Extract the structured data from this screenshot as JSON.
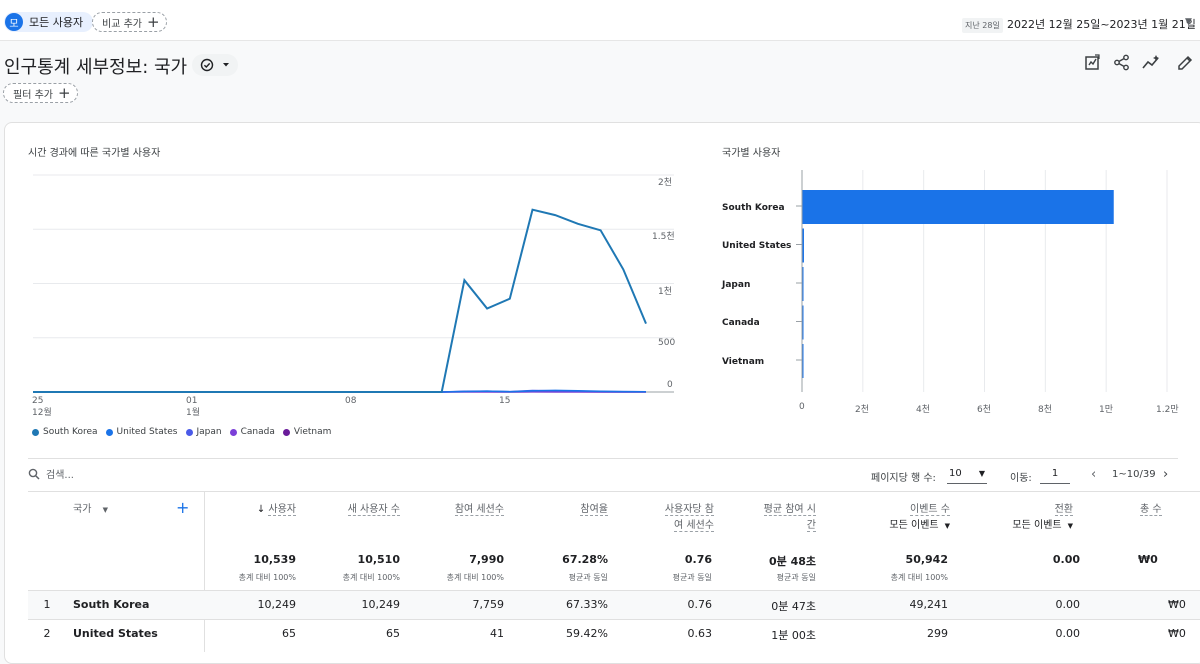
{
  "topbar": {
    "segment_avatar": "모",
    "segment_label": "모든 사용자",
    "compare_label": "비교 추가",
    "date_prefix": "지난 28일",
    "date_range": "2022년 12월 25일~2023년 1월 21일"
  },
  "page": {
    "title": "인구통계 세부정보: 국가",
    "filter_label": "필터 추가"
  },
  "colors": {
    "south_korea": "#1f78b4",
    "united_states": "#1a73e8",
    "japan": "#4a5ae8",
    "canada": "#7b3fd8",
    "vietnam": "#6a1b9a",
    "bar": "#1a73e8"
  },
  "line_chart": {
    "title": "시간 경과에 따른 국가별 사용자",
    "x_ticks": [
      {
        "day": "25",
        "month": "12월"
      },
      {
        "day": "01",
        "month": "1월"
      },
      {
        "day": "08",
        "month": ""
      },
      {
        "day": "15",
        "month": ""
      }
    ],
    "y_ticks": [
      "2천",
      "1.5천",
      "1천",
      "500",
      "0"
    ]
  },
  "bar_chart": {
    "title": "국가별 사용자",
    "x_ticks": [
      "0",
      "2천",
      "4천",
      "6천",
      "8천",
      "1만",
      "1.2만"
    ]
  },
  "chart_data": [
    {
      "type": "line",
      "title": "시간 경과에 따른 국가별 사용자",
      "x": [
        "2022-12-25",
        "2022-12-26",
        "2022-12-27",
        "2022-12-28",
        "2022-12-29",
        "2022-12-30",
        "2022-12-31",
        "2023-01-01",
        "2023-01-02",
        "2023-01-03",
        "2023-01-04",
        "2023-01-05",
        "2023-01-06",
        "2023-01-07",
        "2023-01-08",
        "2023-01-09",
        "2023-01-10",
        "2023-01-11",
        "2023-01-12",
        "2023-01-13",
        "2023-01-14",
        "2023-01-15",
        "2023-01-16",
        "2023-01-17",
        "2023-01-18",
        "2023-01-19",
        "2023-01-20",
        "2023-01-21"
      ],
      "ylim": [
        0,
        2000
      ],
      "series": [
        {
          "name": "South Korea",
          "values": [
            0,
            0,
            0,
            0,
            0,
            0,
            0,
            0,
            0,
            0,
            0,
            0,
            0,
            0,
            0,
            0,
            0,
            0,
            0,
            1030,
            770,
            860,
            1680,
            1630,
            1550,
            1490,
            1130,
            630
          ]
        },
        {
          "name": "United States",
          "values": [
            0,
            0,
            0,
            0,
            0,
            0,
            0,
            0,
            0,
            0,
            0,
            0,
            0,
            0,
            0,
            0,
            0,
            0,
            0,
            5,
            8,
            3,
            10,
            15,
            12,
            6,
            4,
            2
          ]
        },
        {
          "name": "Japan",
          "values": [
            0,
            0,
            0,
            0,
            0,
            0,
            0,
            0,
            0,
            0,
            0,
            0,
            0,
            0,
            0,
            0,
            0,
            0,
            0,
            6,
            8,
            4,
            14,
            12,
            8,
            5,
            4,
            3
          ]
        },
        {
          "name": "Canada",
          "values": [
            0,
            0,
            0,
            0,
            0,
            0,
            0,
            0,
            0,
            0,
            0,
            0,
            0,
            0,
            0,
            0,
            0,
            0,
            0,
            1,
            1,
            1,
            2,
            1,
            1,
            1,
            0,
            0
          ]
        },
        {
          "name": "Vietnam",
          "values": [
            0,
            0,
            0,
            0,
            0,
            0,
            0,
            0,
            0,
            0,
            0,
            0,
            0,
            0,
            0,
            0,
            0,
            0,
            0,
            1,
            1,
            0,
            1,
            1,
            1,
            0,
            0,
            0
          ]
        }
      ],
      "grid": true,
      "legend": "bottom-left"
    },
    {
      "type": "bar",
      "title": "국가별 사용자",
      "categories": [
        "South Korea",
        "United States",
        "Japan",
        "Canada",
        "Vietnam"
      ],
      "values": [
        10249,
        65,
        48,
        9,
        6
      ],
      "xlim": [
        0,
        12000
      ],
      "grid": true,
      "orientation": "horizontal"
    }
  ],
  "table": {
    "search_placeholder": "검색...",
    "rows_per_page_label": "페이지당 행 수:",
    "rows_per_page_value": "10",
    "goto_label": "이동:",
    "goto_value": "1",
    "range_label": "1~10/39",
    "col_country": "국가",
    "col_users": "사용자",
    "col_new_users": "새 사용자 수",
    "col_engaged": "참여 세션수",
    "col_rate": "참여율",
    "col_eps_1": "사용자당 참",
    "col_eps_2": "여 세션수",
    "col_avg_1": "평균 참여 시",
    "col_avg_2": "간",
    "col_events": "이벤트 수",
    "col_events_sub": "모든 이벤트",
    "col_conv": "전환",
    "col_conv_sub": "모든 이벤트",
    "col_total": "총 수",
    "totals": {
      "users": "10,539",
      "users_sub": "총계 대비 100%",
      "new_users": "10,510",
      "new_users_sub": "총계 대비 100%",
      "engaged": "7,990",
      "engaged_sub": "총계 대비 100%",
      "rate": "67.28%",
      "rate_sub": "평균과 동일",
      "eps": "0.76",
      "eps_sub": "평균과 동일",
      "avg": "0분 48초",
      "avg_sub": "평균과 동일",
      "events": "50,942",
      "events_sub": "총계 대비 100%",
      "conv": "0.00",
      "total": "₩0"
    },
    "rows": [
      {
        "idx": "1",
        "country": "South Korea",
        "users": "10,249",
        "new_users": "10,249",
        "engaged": "7,759",
        "rate": "67.33%",
        "eps": "0.76",
        "avg": "0분 47초",
        "events": "49,241",
        "conv": "0.00",
        "total": "₩0"
      },
      {
        "idx": "2",
        "country": "United States",
        "users": "65",
        "new_users": "65",
        "engaged": "41",
        "rate": "59.42%",
        "eps": "0.63",
        "avg": "1분 00초",
        "events": "299",
        "conv": "0.00",
        "total": "₩0"
      }
    ]
  }
}
